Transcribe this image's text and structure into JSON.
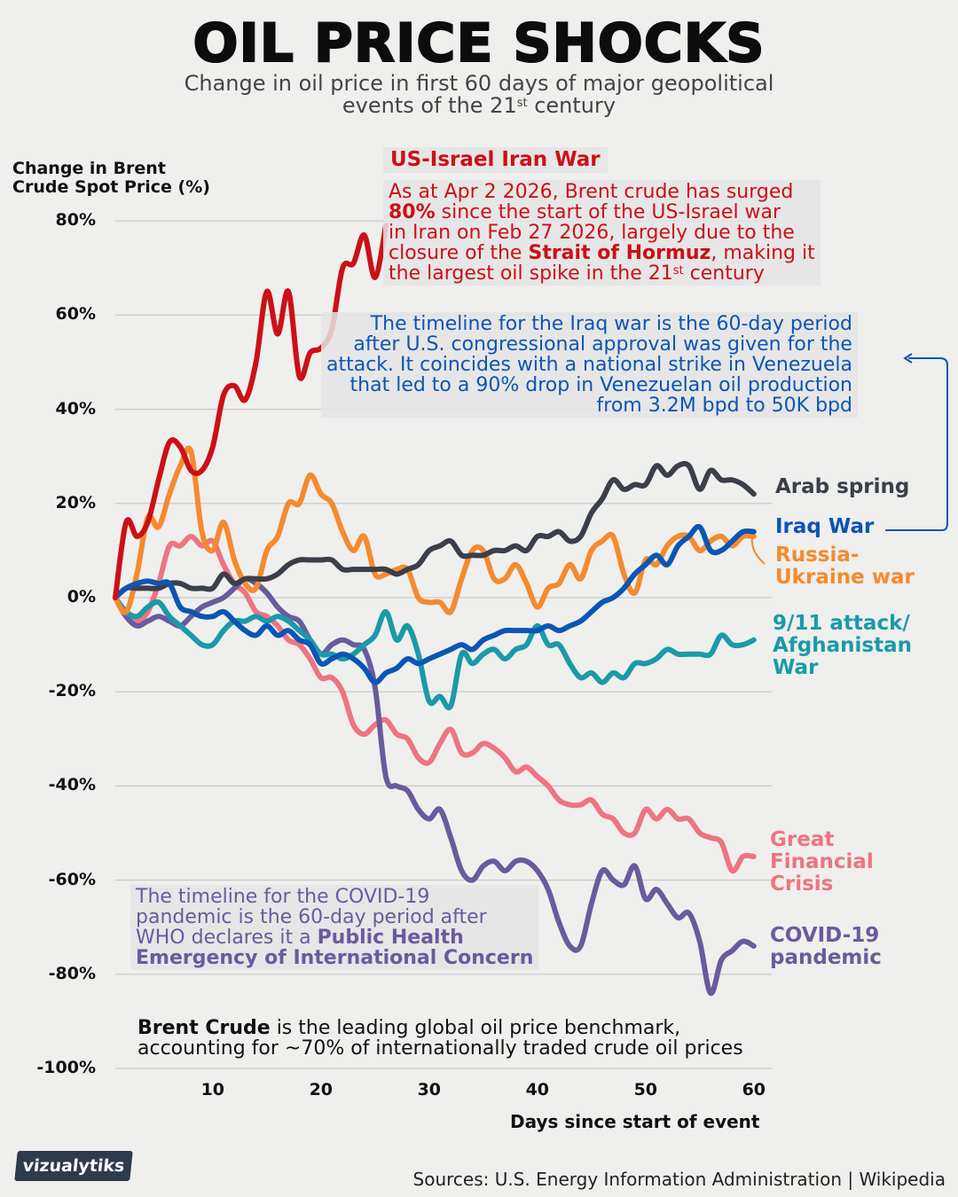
{
  "title": "OIL PRICE SHOCKS",
  "subtitle": [
    [
      {
        "text": "Change in oil price in first 60 days of major geopolitical"
      }
    ],
    [
      {
        "text": "events of the 21"
      },
      {
        "text": "st",
        "sup": true
      },
      {
        "text": " century"
      }
    ]
  ],
  "annotations": {
    "iran_title": "US-Israel Iran War",
    "iran": [
      [
        {
          "text": "As at Apr 2 2026, Brent crude has surged"
        }
      ],
      [
        {
          "text": "80%",
          "bold": true
        },
        {
          "text": " since the start of the US-Israel war"
        }
      ],
      [
        {
          "text": "in Iran on Feb 27 2026, largely due to the"
        }
      ],
      [
        {
          "text": "closure of the "
        },
        {
          "text": "Strait of Hormuz",
          "bold": true
        },
        {
          "text": ", making it"
        }
      ],
      [
        {
          "text": "the largest oil spike in the 21"
        },
        {
          "text": "st",
          "sup": true
        },
        {
          "text": " century"
        }
      ]
    ],
    "iraq": [
      [
        {
          "text": "The timeline for the Iraq war is the 60-day period"
        }
      ],
      [
        {
          "text": "after U.S. congressional approval was given for the"
        }
      ],
      [
        {
          "text": "attack. It coincides with a national strike in Venezuela"
        }
      ],
      [
        {
          "text": "that led to a 90% drop in Venezuelan oil production"
        }
      ],
      [
        {
          "text": "from 3.2M bpd to 50K bpd"
        }
      ]
    ],
    "covid": [
      [
        {
          "text": "The timeline for the COVID-19"
        }
      ],
      [
        {
          "text": "pandemic is the 60-day period after"
        }
      ],
      [
        {
          "text": "WHO declares it a "
        },
        {
          "text": "Public Health",
          "bold": true
        }
      ],
      [
        {
          "text": "Emergency of International Concern",
          "bold": true
        }
      ]
    ],
    "brent": [
      [
        {
          "text": "Brent Crude",
          "bold": true
        },
        {
          "text": " is the leading global oil price benchmark,"
        }
      ],
      [
        {
          "text": "accounting for ~70% of internationally traded crude oil prices"
        }
      ]
    ]
  },
  "source": "Sources: U.S. Energy Information Administration | Wikipedia",
  "logo_text": "vizualytiks",
  "chart_data": {
    "type": "line",
    "ylabel": "Change in Brent Crude Spot Price (%)",
    "xlabel": "Days since start of event",
    "ylim": [
      -100,
      80
    ],
    "xlim": [
      1,
      60
    ],
    "yticks": [
      "80%",
      "60%",
      "40%",
      "20%",
      "0%",
      "-20%",
      "-40%",
      "-60%",
      "-80%",
      "-100%"
    ],
    "ytick_values": [
      80,
      60,
      40,
      20,
      0,
      -20,
      -40,
      -60,
      -80,
      -100
    ],
    "xticks": [
      10,
      20,
      30,
      40,
      50,
      60
    ],
    "grid": true,
    "series": [
      {
        "name": "US-Israel Iran War",
        "label_lines": [],
        "color": "#cc1016",
        "values": [
          0,
          16,
          13,
          16,
          25,
          33,
          32,
          27,
          27,
          32,
          43,
          45,
          42,
          50,
          65,
          56,
          65,
          47,
          52,
          53,
          57,
          70,
          71,
          77,
          68,
          79
        ]
      },
      {
        "name": "Arab spring",
        "label_lines": [
          "Arab spring"
        ],
        "color": "#3a3f4a",
        "values": [
          0,
          2,
          2,
          2,
          2,
          3,
          3,
          2,
          2,
          2,
          5,
          3,
          4,
          4,
          4,
          5,
          7,
          8,
          8,
          8,
          8,
          6,
          6,
          6,
          6,
          6,
          5,
          6,
          7,
          10,
          11,
          12,
          9,
          9,
          9,
          10,
          10,
          11,
          10,
          13,
          13,
          14,
          12,
          13,
          18,
          21,
          25,
          23,
          24,
          24,
          28,
          26,
          28,
          28,
          23,
          27,
          25,
          25,
          24,
          22
        ]
      },
      {
        "name": "Iraq War",
        "label_lines": [
          "Iraq War"
        ],
        "color": "#0b55b5",
        "values": [
          0,
          2,
          3,
          3.5,
          3,
          3,
          -2,
          -3,
          -4,
          -4,
          -3,
          -5,
          -7,
          -8,
          -6,
          -8,
          -7,
          -9,
          -10,
          -14,
          -13,
          -12,
          -13,
          -15,
          -18,
          -16,
          -15,
          -13,
          -14,
          -13,
          -12,
          -11,
          -10,
          -11,
          -9,
          -8,
          -7,
          -7,
          -7,
          -7,
          -6,
          -7,
          -6,
          -5,
          -3,
          -1,
          0,
          2,
          5,
          7,
          9,
          7,
          11,
          13,
          15,
          10,
          10,
          12,
          14,
          14
        ]
      },
      {
        "name": "Russia-Ukraine war",
        "label_lines": [
          "Russia-",
          "Ukraine war"
        ],
        "color": "#f58a2e",
        "values": [
          0,
          -3,
          5,
          17,
          15,
          22,
          28,
          31,
          14,
          10,
          16,
          8,
          3,
          2,
          10,
          13,
          20,
          20,
          26,
          22,
          20,
          14,
          10,
          13,
          5,
          5,
          6,
          6,
          0,
          -1,
          -1,
          -3,
          4,
          10,
          10,
          4,
          4,
          7,
          3,
          -2,
          2,
          3,
          7,
          4,
          10,
          12,
          13,
          5,
          1,
          8,
          7,
          11,
          13,
          13,
          10,
          12,
          13,
          11,
          13,
          13
        ]
      },
      {
        "name": "9/11 attack/ Afghanistan War",
        "label_lines": [
          "9/11 attack/",
          "Afghanistan",
          "War"
        ],
        "color": "#1a9aa8",
        "values": [
          0,
          -3,
          -4,
          -2,
          -1,
          -4,
          -6,
          -8,
          -10,
          -10,
          -7,
          -5,
          -5,
          -4,
          -5,
          -4,
          -5,
          -7,
          -9,
          -12,
          -12,
          -13,
          -12,
          -10,
          -8,
          -3,
          -9,
          -6,
          -12,
          -22,
          -21,
          -23,
          -12,
          -14,
          -12,
          -11,
          -13,
          -11,
          -10,
          -6,
          -10,
          -10,
          -14,
          -17,
          -16,
          -18,
          -16,
          -17,
          -14,
          -14,
          -13,
          -11,
          -12,
          -12,
          -12,
          -12,
          -8,
          -10,
          -10,
          -9
        ]
      },
      {
        "name": "Great Financial Crisis",
        "label_lines": [
          "Great",
          "Financial",
          "Crisis"
        ],
        "color": "#ee7480",
        "values": [
          0,
          -4,
          -5,
          -3,
          3,
          11,
          11,
          13,
          11,
          12,
          7,
          3,
          1,
          -3,
          -4,
          -6,
          -9,
          -10,
          -13,
          -17,
          -17,
          -20,
          -27,
          -29,
          -27,
          -26,
          -29,
          -30,
          -34,
          -35,
          -31,
          -28,
          -33,
          -33,
          -31,
          -32,
          -34,
          -37,
          -36,
          -38,
          -40,
          -43,
          -44,
          -44,
          -43,
          -46,
          -47,
          -50,
          -50,
          -45,
          -47,
          -45,
          -47,
          -47,
          -50,
          -51,
          -52,
          -58,
          -55,
          -55
        ]
      },
      {
        "name": "COVID-19 pandemic",
        "label_lines": [
          "COVID-19",
          "pandemic"
        ],
        "color": "#6a5a9e",
        "values": [
          0,
          -4,
          -6,
          -5,
          -4,
          -5,
          -6,
          -4,
          -2,
          -1,
          0,
          2,
          4,
          3,
          1,
          -2,
          -4,
          -5,
          -9,
          -12,
          -10,
          -9,
          -10,
          -11,
          -19,
          -38,
          -40,
          -41,
          -45,
          -47,
          -45,
          -51,
          -58,
          -60,
          -57,
          -56,
          -58,
          -56,
          -56,
          -58,
          -62,
          -69,
          -74,
          -74,
          -65,
          -58,
          -60,
          -61,
          -57,
          -64,
          -62,
          -65,
          -68,
          -67,
          -73,
          -84,
          -77,
          -75,
          -73,
          -74
        ]
      }
    ]
  }
}
